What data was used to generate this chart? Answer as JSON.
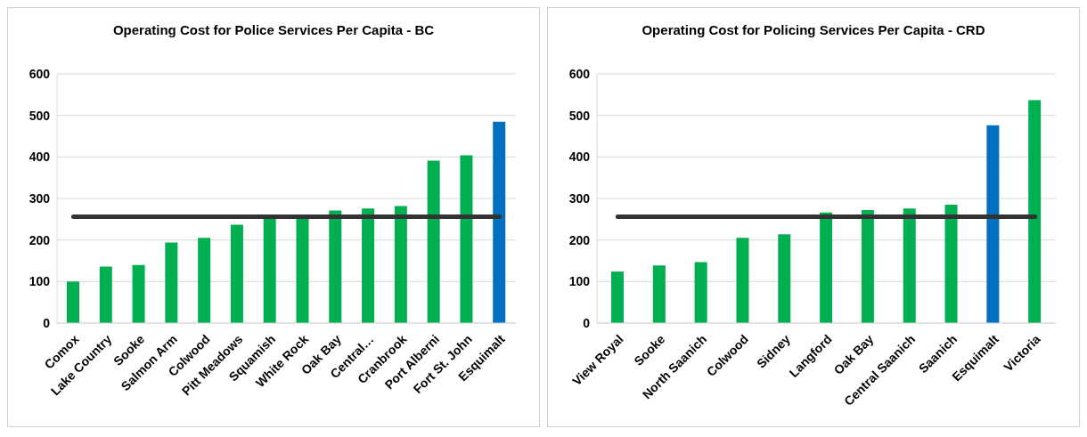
{
  "chart_data": [
    {
      "type": "bar",
      "title": "Operating Cost for Police Services Per Capita - BC",
      "categories": [
        "Comox",
        "Lake Country",
        "Sooke",
        "Salmon Arm",
        "Colwood",
        "Pitt Meadows",
        "Squamish",
        "White Rock",
        "Oak Bay",
        "Central…",
        "Cranbrook",
        "Port Alberni",
        "Fort St. John",
        "Esquimalt"
      ],
      "values": [
        100,
        136,
        140,
        194,
        205,
        237,
        255,
        258,
        271,
        276,
        282,
        391,
        404,
        485
      ],
      "colors": [
        "#00b050",
        "#00b050",
        "#00b050",
        "#00b050",
        "#00b050",
        "#00b050",
        "#00b050",
        "#00b050",
        "#00b050",
        "#00b050",
        "#00b050",
        "#00b050",
        "#00b050",
        "#0070c0"
      ],
      "ylim": [
        0,
        600
      ],
      "yticks": [
        0,
        100,
        200,
        300,
        400,
        500,
        600
      ],
      "grid": "y",
      "legend": false,
      "ref_lines": [
        {
          "axis": "y",
          "value": 256,
          "color": "#333333"
        }
      ]
    },
    {
      "type": "bar",
      "title": "Operating Cost for Policing Services Per Capita - CRD",
      "categories": [
        "View Royal",
        "Sooke",
        "North Saanich",
        "Colwood",
        "Sidney",
        "Langford",
        "Oak Bay",
        "Central Saanich",
        "Saanich",
        "Esquimalt",
        "Victoria"
      ],
      "values": [
        124,
        139,
        147,
        205,
        214,
        266,
        272,
        276,
        285,
        476,
        537
      ],
      "colors": [
        "#00b050",
        "#00b050",
        "#00b050",
        "#00b050",
        "#00b050",
        "#00b050",
        "#00b050",
        "#00b050",
        "#00b050",
        "#0070c0",
        "#00b050"
      ],
      "ylim": [
        0,
        600
      ],
      "yticks": [
        0,
        100,
        200,
        300,
        400,
        500,
        600
      ],
      "grid": "y",
      "legend": false,
      "ref_lines": [
        {
          "axis": "y",
          "value": 256,
          "color": "#333333"
        }
      ]
    }
  ]
}
